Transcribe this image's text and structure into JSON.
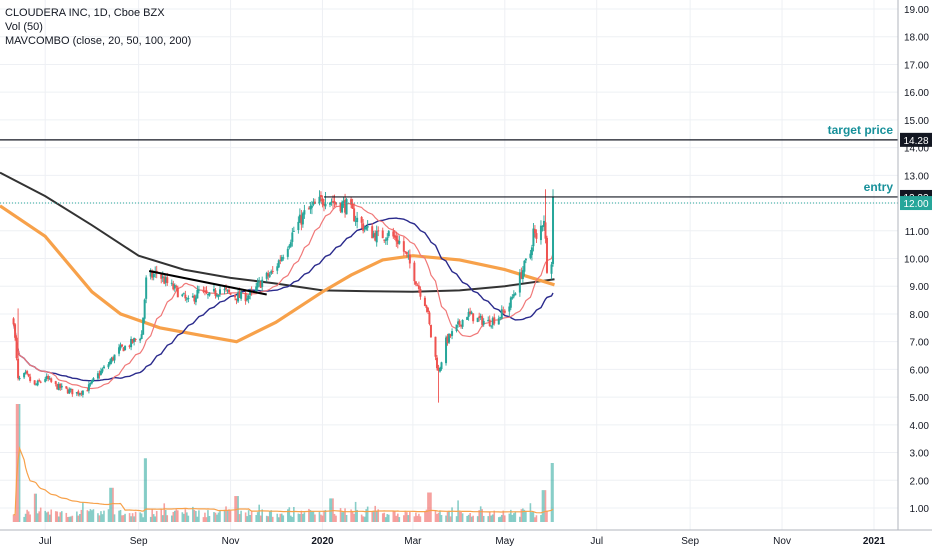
{
  "legend": {
    "symbol": "CLOUDERA INC, 1D, Cboe BZX",
    "volume": "Vol (50)",
    "mavcombo": "MAVCOMBO (close, 20, 50, 100, 200)"
  },
  "colors": {
    "up": "#26a69a",
    "down": "#ef5350",
    "ma20": "#f07878",
    "ma50": "#2a2a8c",
    "ma100": "#f7a14a",
    "ma200": "#333333",
    "vol_ma": "#f7a14a",
    "annotation": "#17909a",
    "grid": "#eef0f4"
  },
  "chart_data": {
    "type": "candlestick",
    "x_tick_labels": [
      "Jul",
      "Sep",
      "Nov",
      "2020",
      "Mar",
      "May",
      "Jul",
      "Sep",
      "Nov",
      "2021"
    ],
    "y_tick_labels": [
      "1.00",
      "2.00",
      "3.00",
      "4.00",
      "5.00",
      "6.00",
      "7.00",
      "8.00",
      "9.00",
      "10.00",
      "11.00",
      "12.00",
      "13.00",
      "14.00",
      "15.00",
      "16.00",
      "17.00",
      "18.00",
      "19.00"
    ],
    "ylim": [
      0.3,
      19.6
    ],
    "grid": true,
    "price_path": [
      [
        "2019-06-10",
        7.8
      ],
      [
        "2019-06-13",
        5.6
      ],
      [
        "2019-06-18",
        5.8
      ],
      [
        "2019-06-24",
        5.4
      ],
      [
        "2019-07-01",
        5.7
      ],
      [
        "2019-07-08",
        5.4
      ],
      [
        "2019-07-15",
        5.25
      ],
      [
        "2019-07-22",
        5.15
      ],
      [
        "2019-07-29",
        5.3
      ],
      [
        "2019-08-05",
        5.8
      ],
      [
        "2019-08-12",
        6.2
      ],
      [
        "2019-08-19",
        6.7
      ],
      [
        "2019-08-26",
        6.9
      ],
      [
        "2019-09-03",
        7.25
      ],
      [
        "2019-09-06",
        9.2
      ],
      [
        "2019-09-13",
        9.5
      ],
      [
        "2019-09-20",
        9.1
      ],
      [
        "2019-09-27",
        8.8
      ],
      [
        "2019-10-04",
        8.4
      ],
      [
        "2019-10-11",
        8.8
      ],
      [
        "2019-10-18",
        8.6
      ],
      [
        "2019-10-25",
        8.9
      ],
      [
        "2019-11-01",
        8.7
      ],
      [
        "2019-11-08",
        8.6
      ],
      [
        "2019-11-15",
        8.7
      ],
      [
        "2019-11-22",
        9.2
      ],
      [
        "2019-11-29",
        9.5
      ],
      [
        "2019-12-06",
        10.2
      ],
      [
        "2019-12-13",
        11.0
      ],
      [
        "2019-12-20",
        11.6
      ],
      [
        "2019-12-27",
        11.9
      ],
      [
        "2020-01-03",
        12.2
      ],
      [
        "2020-01-10",
        12.0
      ],
      [
        "2020-01-17",
        11.9
      ],
      [
        "2020-01-24",
        11.4
      ],
      [
        "2020-01-31",
        11.0
      ],
      [
        "2020-02-07",
        10.8
      ],
      [
        "2020-02-14",
        10.9
      ],
      [
        "2020-02-21",
        10.6
      ],
      [
        "2020-02-28",
        9.8
      ],
      [
        "2020-03-06",
        8.8
      ],
      [
        "2020-03-10",
        8.3
      ],
      [
        "2020-03-13",
        7.2
      ],
      [
        "2020-03-18",
        5.9
      ],
      [
        "2020-03-23",
        7.0
      ],
      [
        "2020-03-30",
        7.5
      ],
      [
        "2020-04-06",
        8.0
      ],
      [
        "2020-04-13",
        7.8
      ],
      [
        "2020-04-20",
        7.7
      ],
      [
        "2020-04-27",
        7.9
      ],
      [
        "2020-05-04",
        8.3
      ],
      [
        "2020-05-08",
        8.9
      ],
      [
        "2020-05-13",
        9.6
      ],
      [
        "2020-05-18",
        10.2
      ],
      [
        "2020-05-20",
        11.0
      ],
      [
        "2020-05-22",
        10.6
      ],
      [
        "2020-05-27",
        11.5
      ],
      [
        "2020-05-29",
        9.7
      ],
      [
        "2020-06-01",
        10.0
      ],
      [
        "2020-06-02",
        12.22
      ]
    ],
    "moving_averages": [
      {
        "name": "MA20",
        "period": 20,
        "color": "#f07878"
      },
      {
        "name": "MA50",
        "period": 50,
        "color": "#2a2a8c"
      },
      {
        "name": "MA100",
        "period": 100,
        "color": "#f7a14a"
      },
      {
        "name": "MA200",
        "period": 200,
        "color": "#333333"
      }
    ],
    "ma200_path": [
      [
        "2019-06-01",
        13.1
      ],
      [
        "2019-07-01",
        12.25
      ],
      [
        "2019-08-01",
        11.2
      ],
      [
        "2019-09-01",
        10.1
      ],
      [
        "2019-10-01",
        9.6
      ],
      [
        "2019-11-01",
        9.3
      ],
      [
        "2019-12-01",
        9.1
      ],
      [
        "2020-01-01",
        8.85
      ],
      [
        "2020-02-01",
        8.82
      ],
      [
        "2020-03-01",
        8.8
      ],
      [
        "2020-04-01",
        8.85
      ],
      [
        "2020-05-01",
        9.0
      ],
      [
        "2020-06-03",
        9.25
      ]
    ],
    "ma100_path": [
      [
        "2019-06-01",
        11.9
      ],
      [
        "2019-07-01",
        10.8
      ],
      [
        "2019-08-01",
        8.8
      ],
      [
        "2019-08-20",
        8.0
      ],
      [
        "2019-09-15",
        7.5
      ],
      [
        "2019-10-15",
        7.2
      ],
      [
        "2019-11-05",
        7.0
      ],
      [
        "2019-12-01",
        7.7
      ],
      [
        "2020-01-01",
        8.8
      ],
      [
        "2020-01-20",
        9.4
      ],
      [
        "2020-02-10",
        9.95
      ],
      [
        "2020-03-01",
        10.1
      ],
      [
        "2020-04-01",
        9.95
      ],
      [
        "2020-05-01",
        9.6
      ],
      [
        "2020-06-03",
        9.05
      ]
    ],
    "trendline": {
      "start": [
        "2019-09-08",
        9.55
      ],
      "end": [
        "2019-11-25",
        8.7
      ]
    },
    "annotations": [
      {
        "label": "target price",
        "price": 14.28,
        "price_label": "14.28",
        "line": "horizontal",
        "from": "chart-start"
      },
      {
        "label": "entry",
        "price": 12.22,
        "price_label": "12.22",
        "line": "horizontal",
        "from": "2020-01-02"
      }
    ],
    "current_price": {
      "value": 12.0,
      "label": "12.00"
    },
    "volume": {
      "unit": "relative",
      "spikes": [
        [
          "2019-06-13",
          1.0
        ],
        [
          "2019-09-06",
          0.54
        ],
        [
          "2019-08-14",
          0.29
        ],
        [
          "2019-06-24",
          0.24
        ],
        [
          "2019-11-05",
          0.22
        ],
        [
          "2020-01-07",
          0.2
        ],
        [
          "2020-03-12",
          0.25
        ],
        [
          "2020-05-27",
          0.27
        ],
        [
          "2020-06-02",
          0.5
        ]
      ]
    }
  }
}
